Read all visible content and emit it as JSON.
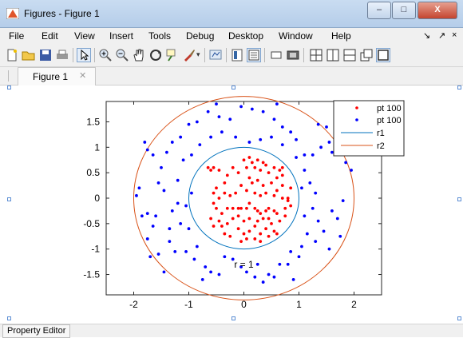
{
  "window": {
    "title": "Figures - Figure 1"
  },
  "window_controls": {
    "minimize": "–",
    "maximize": "□",
    "close": "X"
  },
  "menu": [
    {
      "label": "File"
    },
    {
      "label": "Edit"
    },
    {
      "label": "View"
    },
    {
      "label": "Insert"
    },
    {
      "label": "Tools"
    },
    {
      "label": "Debug"
    },
    {
      "label": "Desktop"
    },
    {
      "label": "Window"
    },
    {
      "label": "Help"
    }
  ],
  "menu_right": {
    "dock": "↘",
    "undock": "↗",
    "close": "×"
  },
  "toolbar": {
    "icons": [
      "new-figure-icon",
      "open-file-icon",
      "save-icon",
      "print-icon",
      "select-pointer-icon",
      "zoom-in-icon",
      "zoom-out-icon",
      "pan-hand-icon",
      "rotate-3d-icon",
      "data-cursor-icon",
      "brush-icon",
      "link-plot-icon",
      "colorbar-icon",
      "legend-icon",
      "hide-plot-tools-icon",
      "show-plot-tools-icon",
      "tile-layout-icon",
      "left-right-layout-icon",
      "top-bottom-layout-icon",
      "float-layout-icon",
      "maximize-layout-icon"
    ]
  },
  "tabs": {
    "figure_tab": "Figure 1",
    "close_glyph": "✕"
  },
  "statusbar": {
    "property_editor": "Property Editor"
  },
  "colors": {
    "red_points": "#ff0000",
    "blue_points": "#0000ff",
    "r1_line": "#0072bd",
    "r2_line": "#d95319"
  },
  "chart_data": {
    "type": "scatter",
    "title": "",
    "xlabel": "",
    "ylabel": "",
    "xlim": [
      -2.5,
      2.5
    ],
    "ylim": [
      -1.9,
      1.9
    ],
    "xticks": [
      -2,
      -1,
      0,
      1,
      2
    ],
    "yticks": [
      -1.5,
      -1,
      -0.5,
      0,
      0.5,
      1,
      1.5
    ],
    "xtick_labels": [
      "-2",
      "-1",
      "0",
      "1",
      "2"
    ],
    "ytick_labels": [
      "-1.5",
      "-1",
      "-0.5",
      "0",
      "0.5",
      "1",
      "1.5"
    ],
    "grid": false,
    "legend_position": "top-right",
    "annotation": {
      "text": "r = 1",
      "x": 0,
      "y": -1.3
    },
    "series": [
      {
        "name": "pt 100",
        "kind": "points",
        "color": "#ff0000",
        "points": [
          [
            -0.65,
            0.6
          ],
          [
            -0.6,
            0.55
          ],
          [
            -0.55,
            0.6
          ],
          [
            -0.5,
            0.2
          ],
          [
            -0.45,
            0.55
          ],
          [
            -0.5,
            -0.2
          ],
          [
            -0.4,
            -0.3
          ],
          [
            -0.55,
            0.1
          ],
          [
            -0.3,
            -0.2
          ],
          [
            -0.2,
            -0.2
          ],
          [
            -0.1,
            -0.2
          ],
          [
            -0.05,
            -0.2
          ],
          [
            0.05,
            -0.2
          ],
          [
            0.1,
            -0.1
          ],
          [
            0.2,
            -0.2
          ],
          [
            0.25,
            -0.25
          ],
          [
            0.3,
            -0.3
          ],
          [
            0.4,
            -0.25
          ],
          [
            0.45,
            -0.2
          ],
          [
            0.55,
            -0.25
          ],
          [
            0.6,
            -0.3
          ],
          [
            0.75,
            -0.2
          ],
          [
            0.1,
            0.8
          ],
          [
            0.15,
            0.7
          ],
          [
            0.2,
            0.6
          ],
          [
            0.25,
            0.75
          ],
          [
            0.3,
            0.55
          ],
          [
            0.35,
            0.7
          ],
          [
            0.4,
            0.65
          ],
          [
            0.45,
            0.5
          ],
          [
            0.55,
            0.6
          ],
          [
            0.6,
            0.4
          ],
          [
            0.65,
            0.55
          ],
          [
            0.7,
            0.6
          ],
          [
            0.05,
            0.6
          ],
          [
            0.0,
            0.75
          ],
          [
            -0.1,
            0.5
          ],
          [
            -0.2,
            0.6
          ],
          [
            -0.3,
            0.45
          ],
          [
            -0.35,
            0.3
          ],
          [
            0.1,
            0.4
          ],
          [
            0.15,
            0.3
          ],
          [
            0.25,
            0.35
          ],
          [
            0.35,
            0.25
          ],
          [
            0.5,
            0.3
          ],
          [
            0.6,
            0.15
          ],
          [
            0.7,
            0.25
          ],
          [
            0.8,
            0.0
          ],
          [
            0.8,
            -0.05
          ],
          [
            0.7,
            0.0
          ],
          [
            0.55,
            0.05
          ],
          [
            0.4,
            0.1
          ],
          [
            0.3,
            0.05
          ],
          [
            0.2,
            0.1
          ],
          [
            0.05,
            0.15
          ],
          [
            -0.05,
            0.25
          ],
          [
            -0.15,
            0.1
          ],
          [
            -0.25,
            0.05
          ],
          [
            -0.35,
            0.1
          ],
          [
            -0.45,
            0.0
          ],
          [
            -0.2,
            -0.4
          ],
          [
            -0.3,
            -0.5
          ],
          [
            -0.4,
            -0.55
          ],
          [
            -0.35,
            -0.7
          ],
          [
            -0.25,
            -0.75
          ],
          [
            -0.1,
            -0.6
          ],
          [
            0.0,
            -0.7
          ],
          [
            0.1,
            -0.65
          ],
          [
            0.2,
            -0.55
          ],
          [
            0.3,
            -0.7
          ],
          [
            0.4,
            -0.6
          ],
          [
            0.5,
            -0.5
          ],
          [
            0.55,
            -0.65
          ],
          [
            0.65,
            -0.45
          ],
          [
            0.75,
            -0.35
          ],
          [
            -0.6,
            -0.4
          ],
          [
            -0.55,
            -0.55
          ],
          [
            -0.45,
            -0.45
          ],
          [
            -0.05,
            -0.85
          ],
          [
            0.05,
            -0.8
          ],
          [
            0.2,
            -0.8
          ],
          [
            0.3,
            -0.85
          ],
          [
            0.45,
            -0.75
          ],
          [
            0.6,
            -0.7
          ],
          [
            0.7,
            0.45
          ],
          [
            0.85,
            0.2
          ],
          [
            0.1,
            -0.4
          ],
          [
            0.0,
            -0.45
          ],
          [
            -0.1,
            -0.35
          ],
          [
            0.25,
            -0.45
          ],
          [
            0.35,
            -0.4
          ],
          [
            0.45,
            -0.4
          ],
          [
            -0.55,
            -0.1
          ],
          [
            0.85,
            -0.15
          ]
        ]
      },
      {
        "name": "pt 100",
        "kind": "points",
        "color": "#0000ff",
        "points": [
          [
            -1.8,
            1.1
          ],
          [
            -1.75,
            0.95
          ],
          [
            -1.65,
            0.85
          ],
          [
            -1.9,
            0.2
          ],
          [
            -1.95,
            0.05
          ],
          [
            -1.85,
            -0.35
          ],
          [
            -1.75,
            -0.3
          ],
          [
            -1.6,
            -0.35
          ],
          [
            -1.65,
            -0.55
          ],
          [
            -1.75,
            -0.8
          ],
          [
            -1.7,
            -1.15
          ],
          [
            -1.55,
            -1.1
          ],
          [
            -1.45,
            -1.45
          ],
          [
            -1.35,
            -0.85
          ],
          [
            -1.25,
            -1.05
          ],
          [
            -1.15,
            -0.5
          ],
          [
            -1.0,
            -0.6
          ],
          [
            -1.05,
            -1.05
          ],
          [
            -0.85,
            -0.95
          ],
          [
            -0.9,
            -1.2
          ],
          [
            -0.7,
            -1.35
          ],
          [
            -0.6,
            -1.45
          ],
          [
            -0.45,
            -1.5
          ],
          [
            -0.35,
            -1.15
          ],
          [
            -0.2,
            -1.2
          ],
          [
            -0.05,
            -1.35
          ],
          [
            0.05,
            -1.45
          ],
          [
            0.2,
            -1.55
          ],
          [
            0.35,
            -1.65
          ],
          [
            0.45,
            -1.5
          ],
          [
            0.55,
            -1.55
          ],
          [
            0.65,
            -1.3
          ],
          [
            0.8,
            -1.3
          ],
          [
            0.85,
            -1.05
          ],
          [
            1.0,
            -1.15
          ],
          [
            1.05,
            -0.95
          ],
          [
            1.15,
            -0.7
          ],
          [
            1.3,
            -0.85
          ],
          [
            1.35,
            -0.45
          ],
          [
            1.45,
            -0.65
          ],
          [
            1.55,
            -1.0
          ],
          [
            1.6,
            -0.25
          ],
          [
            1.7,
            -0.4
          ],
          [
            1.8,
            -0.05
          ],
          [
            1.95,
            0.55
          ],
          [
            1.85,
            0.7
          ],
          [
            1.8,
            0.95
          ],
          [
            1.55,
            1.1
          ],
          [
            1.5,
            1.4
          ],
          [
            1.35,
            1.45
          ],
          [
            1.25,
            0.85
          ],
          [
            1.1,
            0.85
          ],
          [
            0.95,
            1.15
          ],
          [
            0.85,
            1.3
          ],
          [
            0.7,
            1.4
          ],
          [
            0.55,
            1.55
          ],
          [
            0.35,
            1.7
          ],
          [
            0.15,
            1.75
          ],
          [
            -0.05,
            1.8
          ],
          [
            -0.25,
            1.55
          ],
          [
            -0.45,
            1.6
          ],
          [
            -0.65,
            1.7
          ],
          [
            -0.85,
            1.5
          ],
          [
            -1.0,
            1.45
          ],
          [
            -1.15,
            1.2
          ],
          [
            -1.3,
            1.1
          ],
          [
            -1.4,
            0.9
          ],
          [
            -1.5,
            0.6
          ],
          [
            -1.55,
            0.3
          ],
          [
            -1.45,
            0.15
          ],
          [
            -1.2,
            0.35
          ],
          [
            -1.1,
            0.75
          ],
          [
            -0.95,
            0.85
          ],
          [
            -0.8,
            1.05
          ],
          [
            -0.6,
            1.2
          ],
          [
            -0.4,
            1.3
          ],
          [
            -0.15,
            1.2
          ],
          [
            0.1,
            1.1
          ],
          [
            0.3,
            1.15
          ],
          [
            0.5,
            1.2
          ],
          [
            0.7,
            1.05
          ],
          [
            0.95,
            0.8
          ],
          [
            1.1,
            0.55
          ],
          [
            1.2,
            0.3
          ],
          [
            1.3,
            0.1
          ],
          [
            1.25,
            -0.2
          ],
          [
            1.1,
            -0.35
          ],
          [
            1.05,
            0.2
          ],
          [
            -1.2,
            -0.1
          ],
          [
            -1.3,
            -0.25
          ],
          [
            -1.05,
            -0.15
          ],
          [
            -0.95,
            0.1
          ],
          [
            1.75,
            -0.75
          ],
          [
            1.6,
            0.9
          ],
          [
            -0.5,
            1.85
          ],
          [
            0.6,
            1.85
          ],
          [
            -1.35,
            -0.6
          ],
          [
            1.4,
            1.0
          ],
          [
            0.25,
            -1.3
          ],
          [
            -0.75,
            -1.6
          ],
          [
            0.9,
            -1.6
          ]
        ]
      },
      {
        "name": "r1",
        "kind": "circle",
        "radius": 1,
        "color": "#0072bd"
      },
      {
        "name": "r2",
        "kind": "circle",
        "radius": 2,
        "color": "#d95319"
      }
    ]
  }
}
